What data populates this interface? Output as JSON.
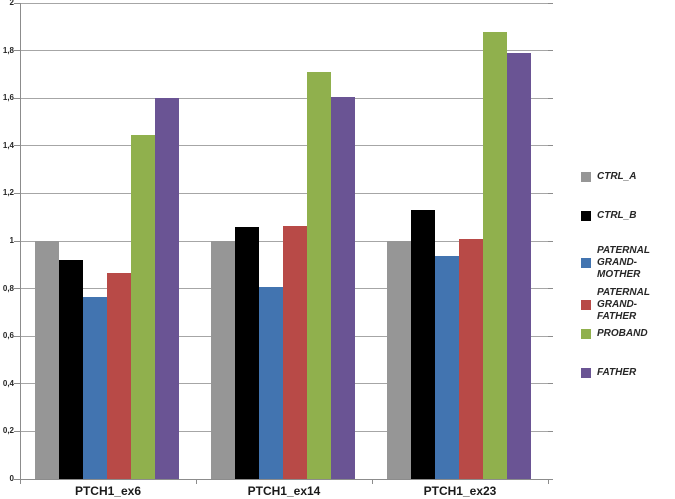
{
  "chart_data": {
    "type": "bar",
    "title": "",
    "xlabel": "",
    "ylabel": "",
    "categories": [
      "PTCH1_ex6",
      "PTCH1_ex14",
      "PTCH1_ex23"
    ],
    "series": [
      {
        "name": "CTRL_A",
        "color": "#969696",
        "values": [
          1.0,
          1.0,
          1.0
        ]
      },
      {
        "name": "CTRL_B",
        "color": "#000000",
        "values": [
          0.92,
          1.06,
          1.13
        ]
      },
      {
        "name": "PATERNAL GRAND-MOTHER",
        "color": "#4274b0",
        "values": [
          0.765,
          0.805,
          0.935
        ]
      },
      {
        "name": "PATERNAL GRAND-FATHER",
        "color": "#b84a47",
        "values": [
          0.865,
          1.065,
          1.01
        ]
      },
      {
        "name": "PROBAND",
        "color": "#90b04d",
        "values": [
          1.445,
          1.71,
          1.88
        ]
      },
      {
        "name": "FATHER",
        "color": "#6a5494",
        "values": [
          1.6,
          1.605,
          1.79
        ]
      }
    ],
    "y_axis": {
      "min": 0,
      "max": 2,
      "step": 0.2,
      "tick_labels": [
        "0",
        "0,2",
        "0,4",
        "0,6",
        "0,8",
        "1",
        "1,2",
        "1,4",
        "1,6",
        "1,8",
        "2"
      ]
    },
    "grid": true,
    "legend_position": "right",
    "colors": {
      "gridline": "#a6a6a6",
      "axis": "#8c8c8c",
      "background": "#ffffff"
    }
  }
}
